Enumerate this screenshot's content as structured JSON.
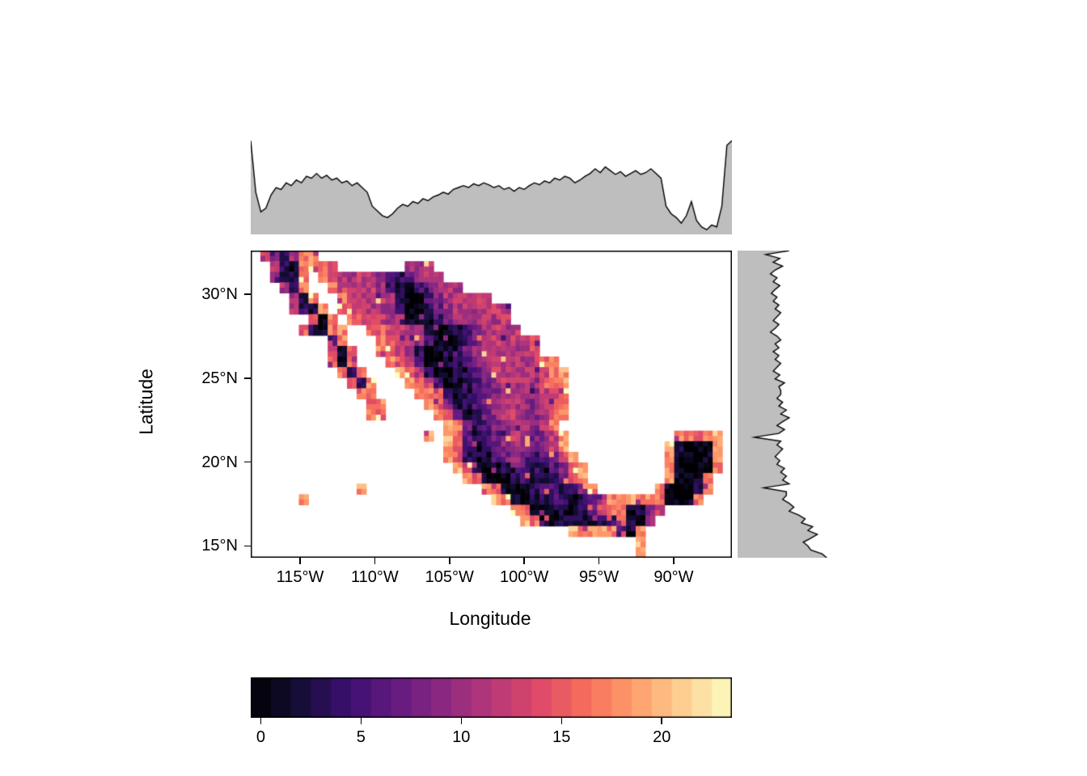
{
  "figure": {
    "background": "#ffffff",
    "description": "Raster heatmap of Mexico with marginal profile plots (top: by longitude, right: by latitude) and a discrete magma colorbar."
  },
  "axes": {
    "x": {
      "title": "Longitude",
      "tick_labels": [
        "115°W",
        "110°W",
        "105°W",
        "100°W",
        "95°W",
        "90°W"
      ],
      "tick_values": [
        -115,
        -110,
        -105,
        -100,
        -95,
        -90
      ],
      "range": [
        -118.3,
        -86.1
      ]
    },
    "y": {
      "title": "Latitude",
      "tick_labels": [
        "30°N",
        "25°N",
        "20°N",
        "15°N"
      ],
      "tick_values": [
        30,
        25,
        20,
        15
      ],
      "range": [
        14.3,
        32.6
      ]
    }
  },
  "colorbar": {
    "tick_labels": [
      "0",
      "5",
      "10",
      "15",
      "20"
    ],
    "tick_values": [
      0,
      5,
      10,
      15,
      20
    ],
    "value_range": [
      -0.5,
      23.5
    ],
    "n_bins": 24,
    "colormap_name": "magma",
    "colormap_stops": [
      [
        0.0,
        "#000004"
      ],
      [
        0.1,
        "#140e36"
      ],
      [
        0.2,
        "#3b0f70"
      ],
      [
        0.3,
        "#641a80"
      ],
      [
        0.4,
        "#8c2981"
      ],
      [
        0.5,
        "#b73779"
      ],
      [
        0.6,
        "#de4968"
      ],
      [
        0.7,
        "#f7705c"
      ],
      [
        0.8,
        "#fe9f6d"
      ],
      [
        0.9,
        "#fecf92"
      ],
      [
        1.0,
        "#fcfdbf"
      ]
    ]
  },
  "marginals": {
    "fill_color": "#bebebe",
    "line_color": "#000000",
    "top_profile": [
      1.0,
      0.45,
      0.24,
      0.28,
      0.42,
      0.5,
      0.48,
      0.55,
      0.52,
      0.58,
      0.55,
      0.62,
      0.6,
      0.65,
      0.6,
      0.63,
      0.58,
      0.6,
      0.55,
      0.57,
      0.52,
      0.55,
      0.5,
      0.45,
      0.3,
      0.25,
      0.2,
      0.18,
      0.22,
      0.28,
      0.32,
      0.3,
      0.35,
      0.33,
      0.38,
      0.36,
      0.4,
      0.42,
      0.45,
      0.43,
      0.48,
      0.5,
      0.52,
      0.5,
      0.54,
      0.52,
      0.55,
      0.53,
      0.5,
      0.52,
      0.48,
      0.5,
      0.46,
      0.5,
      0.48,
      0.52,
      0.55,
      0.53,
      0.57,
      0.55,
      0.6,
      0.58,
      0.62,
      0.6,
      0.55,
      0.58,
      0.62,
      0.65,
      0.7,
      0.66,
      0.72,
      0.68,
      0.64,
      0.67,
      0.62,
      0.65,
      0.68,
      0.64,
      0.66,
      0.7,
      0.65,
      0.6,
      0.3,
      0.22,
      0.18,
      0.12,
      0.2,
      0.35,
      0.15,
      0.08,
      0.05,
      0.1,
      0.08,
      0.3,
      0.95,
      1.0
    ],
    "right_profile": [
      0.55,
      0.3,
      0.45,
      0.38,
      0.48,
      0.4,
      0.35,
      0.42,
      0.38,
      0.45,
      0.4,
      0.36,
      0.42,
      0.38,
      0.44,
      0.4,
      0.46,
      0.42,
      0.38,
      0.44,
      0.4,
      0.35,
      0.42,
      0.46,
      0.4,
      0.44,
      0.38,
      0.44,
      0.4,
      0.46,
      0.42,
      0.38,
      0.45,
      0.4,
      0.5,
      0.44,
      0.46,
      0.46,
      0.42,
      0.48,
      0.44,
      0.52,
      0.46,
      0.55,
      0.48,
      0.42,
      0.5,
      0.44,
      0.18,
      0.46,
      0.42,
      0.48,
      0.44,
      0.4,
      0.45,
      0.42,
      0.5,
      0.46,
      0.52,
      0.48,
      0.55,
      0.28,
      0.52,
      0.52,
      0.48,
      0.55,
      0.6,
      0.55,
      0.65,
      0.72,
      0.68,
      0.8,
      0.75,
      0.85,
      0.78,
      0.7,
      0.75,
      0.78,
      0.9,
      0.95
    ]
  },
  "chart_data": {
    "type": "heatmap",
    "title": "",
    "region": "Mexico",
    "xlabel": "Longitude",
    "ylabel": "Latitude",
    "value_range": [
      0,
      23
    ],
    "legend_position": "bottom",
    "grid_on": false,
    "notes": "Raster values over Mexico; low (dark) values along Sierra Madre Occidental, trans-volcanic belt, Oaxaca/Chiapas highlands and Yucatán interior; high (orange) values along coasts and lowlands. Ocean/no-data is white.",
    "grid": {
      "ncols": 50,
      "nrows": 29,
      "lon_range": [
        -118.3,
        -86.1
      ],
      "lat_range": [
        32.6,
        14.3
      ],
      "no_data_char": ".",
      "value_encoding": "each char is one cell: '.'=no data, 'a'=0, 'b'=1, ... 'x'=23",
      "rows": [
        ".mhdlqr...........................................",
        "..ldcqspn.......klm...............................",
        "..ldcq.qnmlmlkfegjlm..............................",
        "...ldq..qnmlmkfcbgjlml............................",
        "....ldr..rnmlmkebafilmlml.........................",
        "....mecr.qnmllkdabehklmlmml.......................",
        "......pcr.qonmlkcacfikllmlm.......................",
        ".....pecqr..qpnmljbabdgjlmlm......................",
        "........er...rpnmkfbacehkmlmln....................",
        "........ncp..romkeabdfikmlmlmn....................",
        "........pcq...rolfbacegjlmlmlmpq..................",
        ".........qdq...spmeabdfhkmlmlmnqs.................",
        "..........qer...sqnfacegikmlmkprs.................",
        "...........qr....sqogbdfhjlmlkmnq.................",
        "............qr....spicegikmlkjlnq.................",
        "............rp.....sogcehjlmkjkpr.................",
        "....................tqjegikmljnq..................",
        "..................s.tpgdfhkmkijms...........rqqst.",
        "....................sofcfhjlkhjms..........scbact.",
        "....................specegijgfhjns.........scaabr.",
        ".....................tncabehgedgjqs........sbaabq.",
        "......................tocabegdcfins........rbabq..",
        "...........s............tocabdgfdfjq......rcaacq..",
        ".....s...................tpdacegecehmrssqrqdabq...",
        "...........................tpbacdbdgnqpcdjm.......",
        "............................tqfbcedbdfpcbj........",
        ".................................trssrfcr.........",
        "........................................t.........",
        "........................................t........."
      ]
    }
  }
}
